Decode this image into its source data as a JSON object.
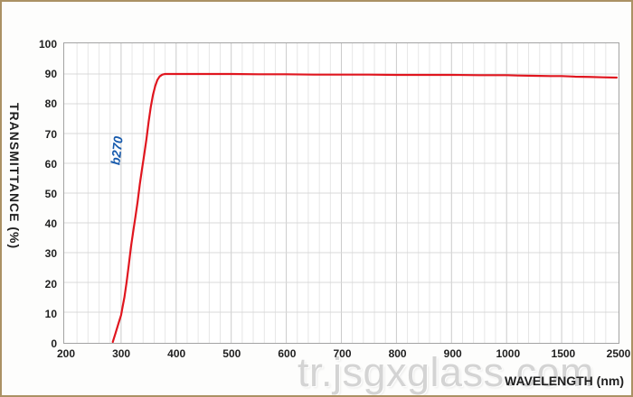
{
  "frame": {
    "border_color": "#ab9164",
    "background": "#fdfdfc"
  },
  "watermark": {
    "text": "tr.jsgxglass.com"
  },
  "chart_data": {
    "type": "line",
    "title": "",
    "xlabel": "WAVELENGTH (nm)",
    "ylabel": "TRANSMITTANCE  (%)",
    "x_axis": {
      "tick_labels": [
        "200",
        "300",
        "400",
        "500",
        "600",
        "700",
        "800",
        "900",
        "1000",
        "1500",
        "2500"
      ],
      "tick_values": [
        200,
        300,
        400,
        500,
        600,
        700,
        800,
        900,
        1000,
        1500,
        2500
      ],
      "scale": "piecewise-equal-tick-spacing",
      "minor_divisions_per_interval": 5
    },
    "y_axis": {
      "tick_labels": [
        "0",
        "10",
        "20",
        "30",
        "40",
        "50",
        "60",
        "70",
        "80",
        "90",
        "100"
      ],
      "tick_values": [
        0,
        10,
        20,
        30,
        40,
        50,
        60,
        70,
        80,
        90,
        100
      ],
      "range": [
        0,
        100
      ]
    },
    "grid": {
      "horizontal_color": "#d8d8d8",
      "vertical_major_color": "#cbcbcb",
      "vertical_minor_color": "#e6e6e6"
    },
    "annotation": {
      "text": "b270",
      "color": "#185bad"
    },
    "series": [
      {
        "name": "b270",
        "color": "#e0161f",
        "points": [
          [
            285,
            0
          ],
          [
            290,
            3
          ],
          [
            295,
            6
          ],
          [
            300,
            9
          ],
          [
            303,
            12
          ],
          [
            306,
            15
          ],
          [
            310,
            20
          ],
          [
            314,
            26
          ],
          [
            318,
            32
          ],
          [
            322,
            37
          ],
          [
            326,
            42
          ],
          [
            330,
            47
          ],
          [
            334,
            53
          ],
          [
            338,
            58
          ],
          [
            342,
            63
          ],
          [
            346,
            68
          ],
          [
            350,
            74
          ],
          [
            354,
            79
          ],
          [
            358,
            83
          ],
          [
            362,
            86
          ],
          [
            366,
            88
          ],
          [
            370,
            89.2
          ],
          [
            375,
            89.8
          ],
          [
            380,
            90
          ],
          [
            400,
            90
          ],
          [
            450,
            90
          ],
          [
            500,
            90
          ],
          [
            550,
            89.9
          ],
          [
            600,
            89.9
          ],
          [
            650,
            89.8
          ],
          [
            700,
            89.8
          ],
          [
            750,
            89.8
          ],
          [
            800,
            89.7
          ],
          [
            850,
            89.7
          ],
          [
            900,
            89.7
          ],
          [
            950,
            89.6
          ],
          [
            1000,
            89.6
          ],
          [
            1100,
            89.5
          ],
          [
            1250,
            89.4
          ],
          [
            1400,
            89.3
          ],
          [
            1500,
            89.3
          ],
          [
            1750,
            89.1
          ],
          [
            2000,
            89.0
          ],
          [
            2250,
            88.9
          ],
          [
            2500,
            88.8
          ]
        ]
      }
    ]
  }
}
